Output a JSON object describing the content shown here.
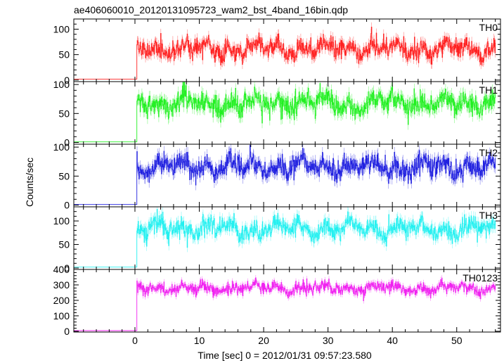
{
  "chart_data": {
    "type": "line",
    "title": "ae406060010_20120131095723_wam2_bst_4band_16bin.qdp",
    "xlabel": "Time [sec] 0 = 2012/01/31 09:57:23.580",
    "ylabel": "Counts/sec",
    "xlim": [
      -9.5,
      56.8
    ],
    "xticks": [
      0,
      10,
      20,
      30,
      40,
      50
    ],
    "xtick_labels": [
      "0",
      "10",
      "20",
      "30",
      "40",
      "50"
    ],
    "grid": false,
    "onset_time": 0.3,
    "end_time": 56.0,
    "panels": [
      {
        "name": "TH0",
        "color": "#ff2020",
        "ylim": [
          -3,
          120
        ],
        "yticks": [
          0,
          50,
          100
        ],
        "ytick_labels": [
          "0",
          "50",
          "100"
        ],
        "pre_level": 2,
        "mean": 62,
        "amplitude": 13,
        "noise": 9,
        "error": 9,
        "seed": 11
      },
      {
        "name": "TH1",
        "color": "#22f022",
        "ylim": [
          -3,
          105
        ],
        "yticks": [
          0,
          50,
          100
        ],
        "ytick_labels": [
          "0",
          "50",
          "100"
        ],
        "pre_level": 1,
        "mean": 68,
        "amplitude": 11,
        "noise": 9,
        "error": 9,
        "seed": 23
      },
      {
        "name": "TH2",
        "color": "#2020e0",
        "ylim": [
          -3,
          105
        ],
        "yticks": [
          0,
          50,
          100
        ],
        "ytick_labels": [
          "0",
          "50",
          "100"
        ],
        "pre_level": 1,
        "mean": 66,
        "amplitude": 12,
        "noise": 9,
        "error": 9,
        "seed": 37
      },
      {
        "name": "TH3",
        "color": "#22f0f0",
        "ylim": [
          -3,
          130
        ],
        "yticks": [
          0,
          50,
          100
        ],
        "ytick_labels": [
          "0",
          "50",
          "100"
        ],
        "pre_level": 2,
        "mean": 84,
        "amplitude": 14,
        "noise": 10,
        "error": 10,
        "seed": 51
      },
      {
        "name": "TH0123",
        "color": "#f020f0",
        "ylim": [
          -5,
          400
        ],
        "yticks": [
          0,
          100,
          200,
          300,
          400
        ],
        "ytick_labels": [
          "0",
          "100",
          "200",
          "300",
          "400"
        ],
        "pre_level": 4,
        "mean": 278,
        "amplitude": 22,
        "noise": 18,
        "error": 18,
        "seed": 67
      }
    ]
  }
}
